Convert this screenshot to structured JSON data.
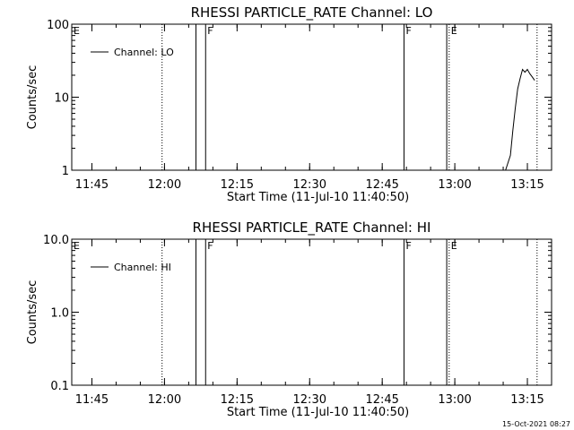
{
  "chart_data": [
    {
      "type": "line",
      "title": "RHESSI PARTICLE_RATE Channel: LO",
      "xlabel": "Start Time (11-Jul-10 11:40:50)",
      "ylabel": "Counts/sec",
      "yscale": "log",
      "ylim": [
        1,
        100
      ],
      "yticks": [
        1,
        10,
        100
      ],
      "ytick_labels": [
        "1",
        "10",
        "100"
      ],
      "xlim": [
        "11:40:50",
        "13:20:00"
      ],
      "xticks": [
        "11:45",
        "12:00",
        "12:15",
        "12:30",
        "12:45",
        "13:00",
        "13:15"
      ],
      "legend": {
        "label": "Channel: LO",
        "position": "top-left"
      },
      "markers": [
        {
          "label": "E",
          "time": "11:40:50",
          "style": "none"
        },
        {
          "label": "",
          "time": "11:59:30",
          "style": "dotted"
        },
        {
          "label": "",
          "time": "12:06:30",
          "style": "solid"
        },
        {
          "label": "F",
          "time": "12:08:30",
          "style": "solid"
        },
        {
          "label": "F",
          "time": "12:49:30",
          "style": "solid"
        },
        {
          "label": "",
          "time": "12:58:20",
          "style": "solid"
        },
        {
          "label": "E",
          "time": "12:58:50",
          "style": "dotted"
        },
        {
          "label": "",
          "time": "13:17:00",
          "style": "dotted"
        }
      ],
      "series": [
        {
          "name": "Channel: LO",
          "points": [
            [
              "13:10:30",
              1.0
            ],
            [
              "13:11:30",
              1.6
            ],
            [
              "13:12:00",
              3.5
            ],
            [
              "13:12:30",
              7.0
            ],
            [
              "13:13:00",
              13.0
            ],
            [
              "13:13:30",
              18.0
            ],
            [
              "13:14:00",
              24.0
            ],
            [
              "13:14:30",
              22.0
            ],
            [
              "13:15:00",
              24.0
            ],
            [
              "13:15:30",
              21.0
            ],
            [
              "13:16:00",
              19.0
            ],
            [
              "13:16:30",
              17.0
            ]
          ]
        }
      ]
    },
    {
      "type": "line",
      "title": "RHESSI PARTICLE_RATE Channel: HI",
      "xlabel": "Start Time (11-Jul-10 11:40:50)",
      "ylabel": "Counts/sec",
      "yscale": "log",
      "ylim": [
        0.1,
        10
      ],
      "yticks": [
        0.1,
        1,
        10
      ],
      "ytick_labels": [
        "0.1",
        "1.0",
        "10.0"
      ],
      "xlim": [
        "11:40:50",
        "13:20:00"
      ],
      "xticks": [
        "11:45",
        "12:00",
        "12:15",
        "12:30",
        "12:45",
        "13:00",
        "13:15"
      ],
      "legend": {
        "label": "Channel: HI",
        "position": "top-left"
      },
      "markers": [
        {
          "label": "E",
          "time": "11:40:50",
          "style": "none"
        },
        {
          "label": "",
          "time": "11:59:30",
          "style": "dotted"
        },
        {
          "label": "",
          "time": "12:06:30",
          "style": "solid"
        },
        {
          "label": "F",
          "time": "12:08:30",
          "style": "solid"
        },
        {
          "label": "F",
          "time": "12:49:30",
          "style": "solid"
        },
        {
          "label": "",
          "time": "12:58:20",
          "style": "solid"
        },
        {
          "label": "E",
          "time": "12:58:50",
          "style": "dotted"
        },
        {
          "label": "",
          "time": "13:17:00",
          "style": "dotted"
        }
      ],
      "series": [
        {
          "name": "Channel: HI",
          "points": []
        }
      ]
    }
  ],
  "footer": {
    "timestamp": "15-Oct-2021 08:27"
  }
}
